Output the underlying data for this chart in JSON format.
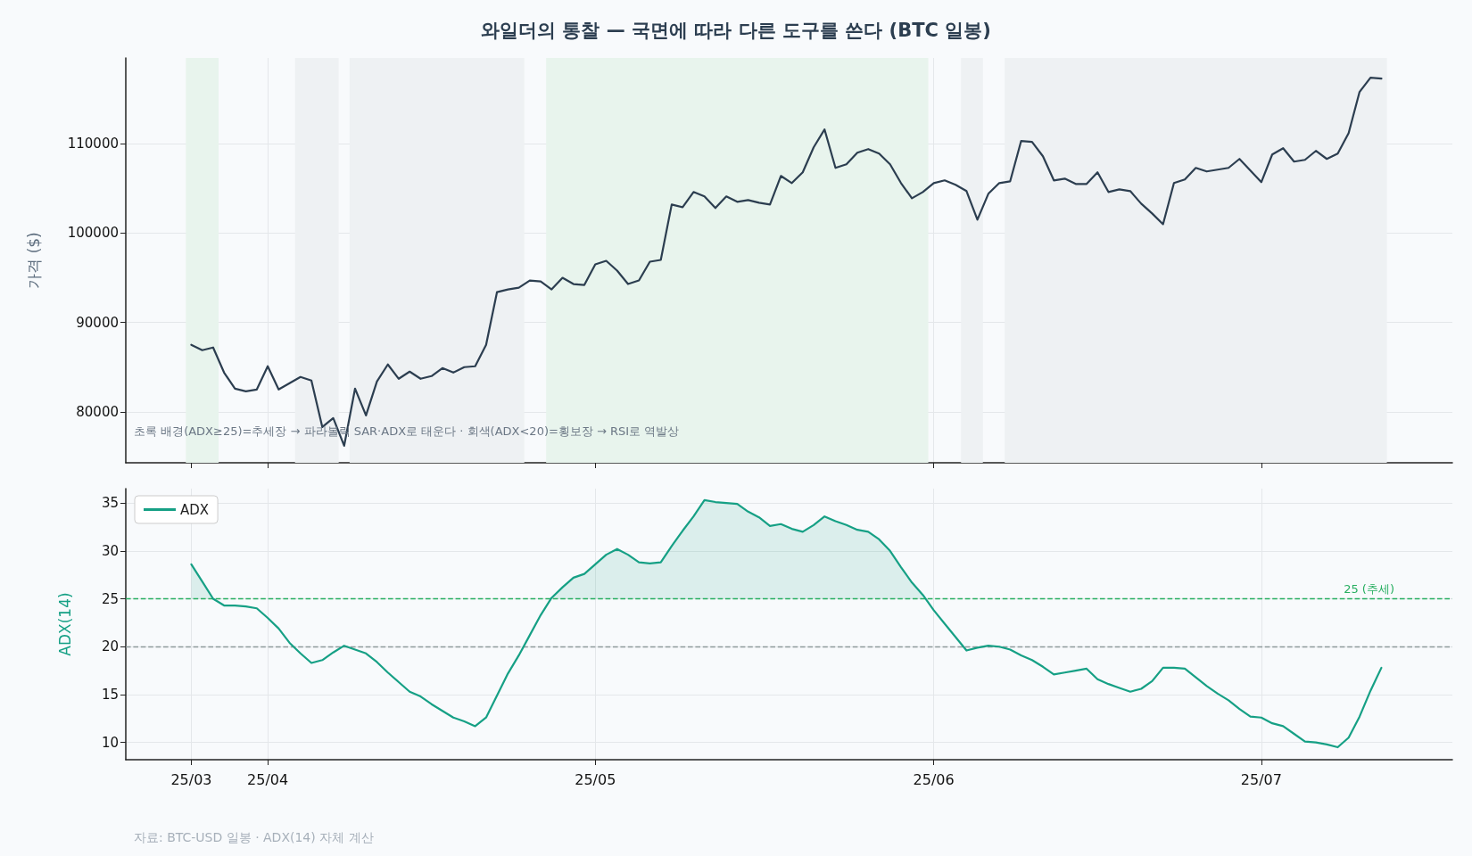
{
  "chart_data": [
    {
      "type": "line",
      "title": "와일더의 통찰 — 국면에 따라 다른 도구를 쓴다 (BTC 일봉)",
      "ylabel": "가격 ($)",
      "x": [
        "--03-25",
        "--03-26",
        "--03-27",
        "--03-28",
        "--03-29",
        "--03-30",
        "--03-31",
        "--04-01",
        "--04-02",
        "--04-03",
        "--04-04",
        "--04-05",
        "--04-06",
        "--04-07",
        "--04-08",
        "--04-09",
        "--04-10",
        "--04-11",
        "--04-12",
        "--04-13",
        "--04-14",
        "--04-15",
        "--04-16",
        "--04-17",
        "--04-18",
        "--04-19",
        "--04-20",
        "--04-21",
        "--04-22",
        "--04-23",
        "--04-24",
        "--04-25",
        "--04-26",
        "--04-27",
        "--04-28",
        "--04-29",
        "--04-30",
        "--05-01",
        "--05-02",
        "--05-03",
        "--05-04",
        "--05-05",
        "--05-06",
        "--05-07",
        "--05-08",
        "--05-09",
        "--05-10",
        "--05-11",
        "--05-12",
        "--05-13",
        "--05-14",
        "--05-15",
        "--05-16",
        "--05-17",
        "--05-18",
        "--05-19",
        "--05-20",
        "--05-21",
        "--05-22",
        "--05-23",
        "--05-24",
        "--05-25",
        "--05-26",
        "--05-27",
        "--05-28",
        "--05-29",
        "--05-30",
        "--05-31",
        "--06-01",
        "--06-02",
        "--06-03",
        "--06-04",
        "--06-05",
        "--06-06",
        "--06-07",
        "--06-08",
        "--06-09",
        "--06-10",
        "--06-11",
        "--06-12",
        "--06-13",
        "--06-14",
        "--06-15",
        "--06-16",
        "--06-17",
        "--06-18",
        "--06-19",
        "--06-20",
        "--06-21",
        "--06-22",
        "--06-23",
        "--06-24",
        "--06-25",
        "--06-26",
        "--06-27",
        "--06-28",
        "--06-29",
        "--06-30",
        "--07-01",
        "--07-02",
        "--07-03",
        "--07-04",
        "--07-05",
        "--07-06",
        "--07-07",
        "--07-08",
        "--07-09",
        "--07-10",
        "--07-11",
        "--07-12"
      ],
      "series": [
        {
          "color": "#2c3e50",
          "values": [
            87500,
            86900,
            87200,
            84400,
            82600,
            82300,
            82500,
            85100,
            82500,
            83200,
            83900,
            83500,
            78300,
            79300,
            76200,
            82600,
            79600,
            83400,
            85300,
            83700,
            84500,
            83700,
            84000,
            84900,
            84400,
            85000,
            85100,
            87500,
            93400,
            93700,
            93900,
            94700,
            94600,
            93700,
            95000,
            94300,
            94200,
            96500,
            96900,
            95800,
            94300,
            94700,
            96800,
            97000,
            103200,
            102900,
            104600,
            104100,
            102800,
            104100,
            103500,
            103700,
            103400,
            103200,
            106400,
            105600,
            106800,
            109600,
            111600,
            107300,
            107700,
            109000,
            109400,
            108900,
            107700,
            105600,
            103900,
            104600,
            105600,
            105900,
            105400,
            104700,
            101500,
            104400,
            105600,
            105800,
            110300,
            110200,
            108600,
            105900,
            106100,
            105500,
            105500,
            106800,
            104600,
            104900,
            104700,
            103300,
            102200,
            101000,
            105600,
            106000,
            107300,
            106900,
            107100,
            107300,
            108300,
            107000,
            105700,
            108800,
            109500,
            108000,
            108200,
            109200,
            108300,
            108900,
            111200,
            115800,
            117400,
            117300
          ]
        }
      ],
      "xlim": [
        "--03-19",
        "--07-18T12:00"
      ],
      "xticks": [
        {
          "value": "--03-25",
          "label": "25/03"
        },
        {
          "value": "--04-01",
          "label": "25/04"
        },
        {
          "value": "--05-01",
          "label": "25/05"
        },
        {
          "value": "--06-01",
          "label": "25/06"
        },
        {
          "value": "--07-01",
          "label": "25/07"
        }
      ],
      "ylim": [
        74300,
        119600
      ],
      "yticks": [
        80000,
        90000,
        100000,
        110000
      ],
      "bands": [
        {
          "axis": "x",
          "from": "--03-24T12:00",
          "to": "--03-27T12:00",
          "color": "#e8f4ed"
        },
        {
          "axis": "x",
          "from": "--04-03T12:00",
          "to": "--04-07T12:00",
          "color": "#eef1f3"
        },
        {
          "axis": "x",
          "from": "--04-08T12:00",
          "to": "--04-24T12:00",
          "color": "#eef1f3"
        },
        {
          "axis": "x",
          "from": "--04-26T12:00",
          "to": "--05-31T12:00",
          "color": "#e8f4ed"
        },
        {
          "axis": "x",
          "from": "--06-03T12:00",
          "to": "--06-05T12:00",
          "color": "#eef1f3"
        },
        {
          "axis": "x",
          "from": "--06-07T12:00",
          "to": "--07-12T12:00",
          "color": "#eef1f3"
        }
      ],
      "annotations": [
        "초록 배경(ADX≥25)=추세장 → 파라볼릭 SAR·ADX로 태운다 · 회색(ADX<20)=횡보장 → RSI로 역발상"
      ],
      "grid": true,
      "marker": "none",
      "line_style": "solid",
      "tick_labels": "y"
    },
    {
      "type": "line",
      "ylabel": "ADX(14)",
      "x": [
        "--03-25",
        "--03-26",
        "--03-27",
        "--03-28",
        "--03-29",
        "--03-30",
        "--03-31",
        "--04-01",
        "--04-02",
        "--04-03",
        "--04-04",
        "--04-05",
        "--04-06",
        "--04-07",
        "--04-08",
        "--04-09",
        "--04-10",
        "--04-11",
        "--04-12",
        "--04-13",
        "--04-14",
        "--04-15",
        "--04-16",
        "--04-17",
        "--04-18",
        "--04-19",
        "--04-20",
        "--04-21",
        "--04-22",
        "--04-23",
        "--04-24",
        "--04-25",
        "--04-26",
        "--04-27",
        "--04-28",
        "--04-29",
        "--04-30",
        "--05-01",
        "--05-02",
        "--05-03",
        "--05-04",
        "--05-05",
        "--05-06",
        "--05-07",
        "--05-08",
        "--05-09",
        "--05-10",
        "--05-11",
        "--05-12",
        "--05-13",
        "--05-14",
        "--05-15",
        "--05-16",
        "--05-17",
        "--05-18",
        "--05-19",
        "--05-20",
        "--05-21",
        "--05-22",
        "--05-23",
        "--05-24",
        "--05-25",
        "--05-26",
        "--05-27",
        "--05-28",
        "--05-29",
        "--05-30",
        "--05-31",
        "--06-01",
        "--06-02",
        "--06-03",
        "--06-04",
        "--06-05",
        "--06-06",
        "--06-07",
        "--06-08",
        "--06-09",
        "--06-10",
        "--06-11",
        "--06-12",
        "--06-13",
        "--06-14",
        "--06-15",
        "--06-16",
        "--06-17",
        "--06-18",
        "--06-19",
        "--06-20",
        "--06-21",
        "--06-22",
        "--06-23",
        "--06-24",
        "--06-25",
        "--06-26",
        "--06-27",
        "--06-28",
        "--06-29",
        "--06-30",
        "--07-01",
        "--07-02",
        "--07-03",
        "--07-04",
        "--07-05",
        "--07-06",
        "--07-07",
        "--07-08",
        "--07-09",
        "--07-10",
        "--07-11",
        "--07-12"
      ],
      "series": [
        {
          "name": "ADX",
          "color": "#16a085",
          "values": [
            28.6,
            26.8,
            25.0,
            24.3,
            24.3,
            24.2,
            24.0,
            23.0,
            21.9,
            20.4,
            19.3,
            18.3,
            18.6,
            19.4,
            20.1,
            19.7,
            19.3,
            18.4,
            17.3,
            16.3,
            15.3,
            14.8,
            14.0,
            13.3,
            12.6,
            12.2,
            11.7,
            12.6,
            14.9,
            17.2,
            19.1,
            21.2,
            23.3,
            25.1,
            26.2,
            27.2,
            27.6,
            28.6,
            29.6,
            30.2,
            29.6,
            28.8,
            28.7,
            28.8,
            30.5,
            32.1,
            33.6,
            35.3,
            35.1,
            35.0,
            34.9,
            34.1,
            33.5,
            32.6,
            32.8,
            32.3,
            32.0,
            32.7,
            33.6,
            33.1,
            32.7,
            32.2,
            32.0,
            31.2,
            30.0,
            28.3,
            26.7,
            25.4,
            23.8,
            22.4,
            21.0,
            19.6,
            19.9,
            20.1,
            20.0,
            19.7,
            19.1,
            18.6,
            17.9,
            17.1,
            17.3,
            17.5,
            17.7,
            16.6,
            16.1,
            15.7,
            15.3,
            15.6,
            16.4,
            17.8,
            17.8,
            17.7,
            16.8,
            15.9,
            15.1,
            14.4,
            13.5,
            12.7,
            12.6,
            12.0,
            11.7,
            10.9,
            10.1,
            10.0,
            9.8,
            9.5,
            10.5,
            12.7,
            15.4,
            17.8
          ],
          "lower": [
            25,
            25,
            25,
            null,
            null,
            null,
            null,
            null,
            null,
            null,
            null,
            null,
            null,
            null,
            null,
            null,
            null,
            null,
            null,
            null,
            null,
            null,
            null,
            null,
            null,
            null,
            null,
            null,
            null,
            null,
            null,
            null,
            null,
            25,
            25,
            25,
            25,
            25,
            25,
            25,
            25,
            25,
            25,
            25,
            25,
            25,
            25,
            25,
            25,
            25,
            25,
            25,
            25,
            25,
            25,
            25,
            25,
            25,
            25,
            25,
            25,
            25,
            25,
            25,
            25,
            25,
            25,
            25,
            null,
            null,
            null,
            null,
            null,
            null,
            null,
            null,
            null,
            null,
            null,
            null,
            null,
            null,
            null,
            null,
            null,
            null,
            null,
            null,
            null,
            null,
            null,
            null,
            null,
            null,
            null,
            null,
            null,
            null,
            null,
            null,
            null,
            null,
            null,
            null,
            null,
            null,
            null,
            null,
            null,
            null
          ],
          "upper": [
            28.6,
            26.8,
            25.0,
            null,
            null,
            null,
            null,
            null,
            null,
            null,
            null,
            null,
            null,
            null,
            null,
            null,
            null,
            null,
            null,
            null,
            null,
            null,
            null,
            null,
            null,
            null,
            null,
            null,
            null,
            null,
            null,
            null,
            null,
            25.1,
            26.2,
            27.2,
            27.6,
            28.6,
            29.6,
            30.2,
            29.6,
            28.8,
            28.7,
            28.8,
            30.5,
            32.1,
            33.6,
            35.3,
            35.1,
            35.0,
            34.9,
            34.1,
            33.5,
            32.6,
            32.8,
            32.3,
            32.0,
            32.7,
            33.6,
            33.1,
            32.7,
            32.2,
            32.0,
            31.2,
            30.0,
            28.3,
            26.7,
            25.4,
            null,
            null,
            null,
            null,
            null,
            null,
            null,
            null,
            null,
            null,
            null,
            null,
            null,
            null,
            null,
            null,
            null,
            null,
            null,
            null,
            null,
            null,
            null,
            null,
            null,
            null,
            null,
            null,
            null,
            null,
            null,
            null,
            null,
            null,
            null,
            null,
            null,
            null,
            null,
            null,
            null,
            null
          ]
        }
      ],
      "xlim": [
        "--03-19",
        "--07-18T12:00"
      ],
      "xticks": [
        {
          "value": "--03-25",
          "label": "25/03"
        },
        {
          "value": "--04-01",
          "label": "25/04"
        },
        {
          "value": "--05-01",
          "label": "25/05"
        },
        {
          "value": "--06-01",
          "label": "25/06"
        },
        {
          "value": "--07-01",
          "label": "25/07"
        }
      ],
      "ylim": [
        8.2,
        36.5
      ],
      "yticks": [
        10,
        15,
        20,
        25,
        30,
        35
      ],
      "ref_lines": [
        {
          "axis": "y",
          "value": 25,
          "label": "25 (추세)",
          "color": "#27ae60",
          "line_style": "dashed"
        },
        {
          "axis": "y",
          "value": 20,
          "label": null,
          "color": "#8e9a9b",
          "line_style": "dashed"
        }
      ],
      "annotations": [
        "자료: BTC-USD 일봉 · ADX(14) 자체 계산"
      ],
      "grid": true,
      "legend": "top left",
      "marker": "none",
      "line_style": "solid"
    }
  ]
}
